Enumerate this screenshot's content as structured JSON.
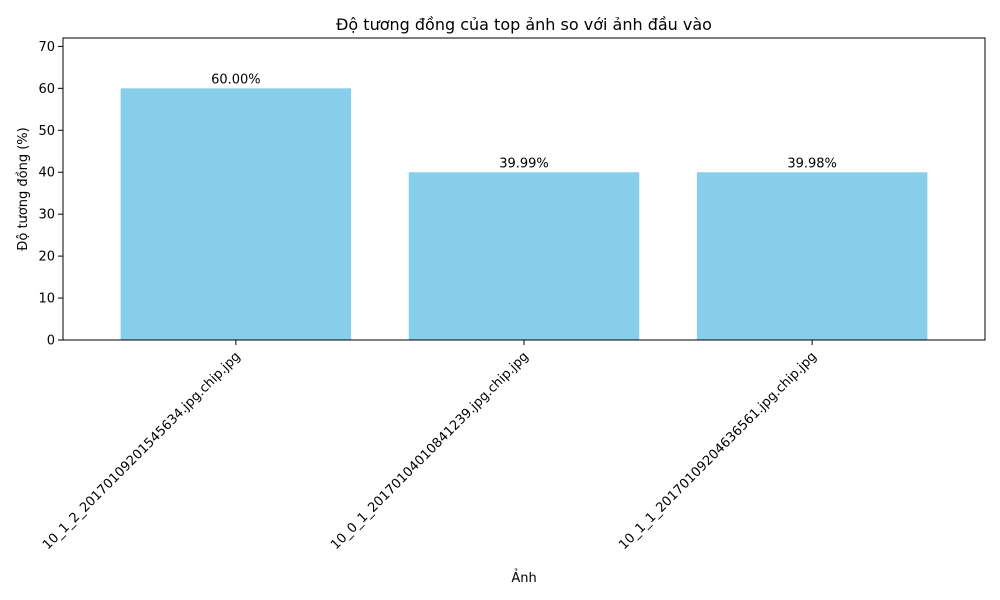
{
  "chart_data": {
    "type": "bar",
    "title": "Độ tương đồng của top ảnh so với ảnh đầu vào",
    "xlabel": "Ảnh",
    "ylabel": "Độ tương đồng (%)",
    "categories": [
      "10_1_2_20170109201545634.jpg.chip.jpg",
      "10_0_1_20170104010841239.jpg.chip.jpg",
      "10_1_1_20170109204636561.jpg.chip.jpg"
    ],
    "values": [
      60.0,
      39.99,
      39.98
    ],
    "value_labels": [
      "60.00%",
      "39.99%",
      "39.98%"
    ],
    "ylim": [
      0,
      72
    ],
    "yticks": [
      0,
      10,
      20,
      30,
      40,
      50,
      60,
      70
    ],
    "bar_color": "#87ceeb",
    "grid": false,
    "legend": "none"
  }
}
